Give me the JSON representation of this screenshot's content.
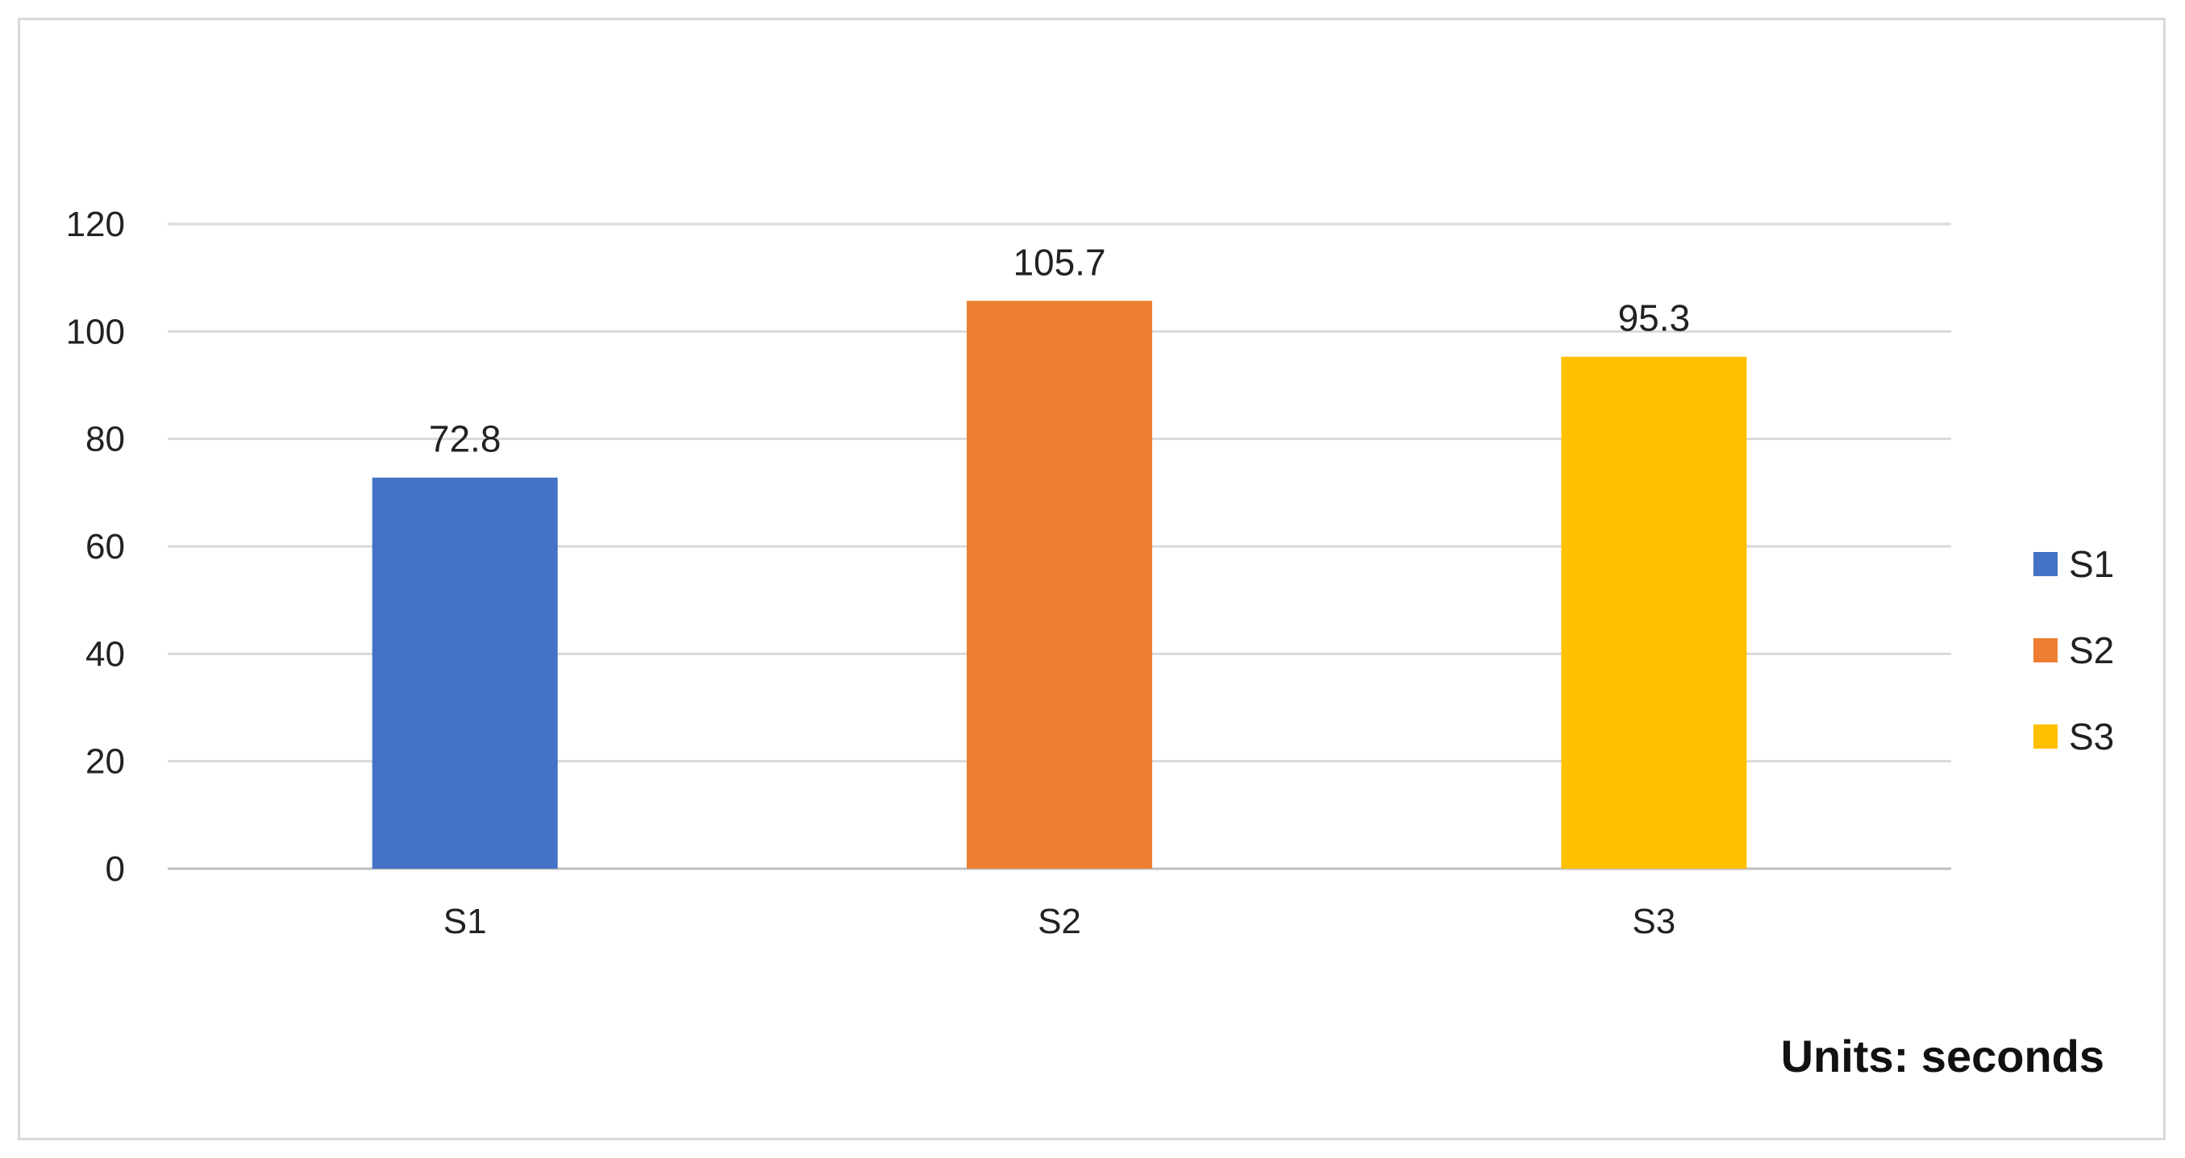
{
  "chart_data": {
    "type": "bar",
    "categories": [
      "S1",
      "S2",
      "S3"
    ],
    "values": [
      72.8,
      105.7,
      95.3
    ],
    "data_labels": [
      "72.8",
      "105.7",
      "95.3"
    ],
    "colors": [
      "#4472C4",
      "#ED7D31",
      "#FFC000"
    ],
    "ylim": [
      0,
      120
    ],
    "yticks": [
      0,
      20,
      40,
      60,
      80,
      100,
      120
    ],
    "grid": true,
    "legend": {
      "placement": "right",
      "entries": [
        "S1",
        "S2",
        "S3"
      ]
    },
    "annotation": "Units: seconds"
  }
}
